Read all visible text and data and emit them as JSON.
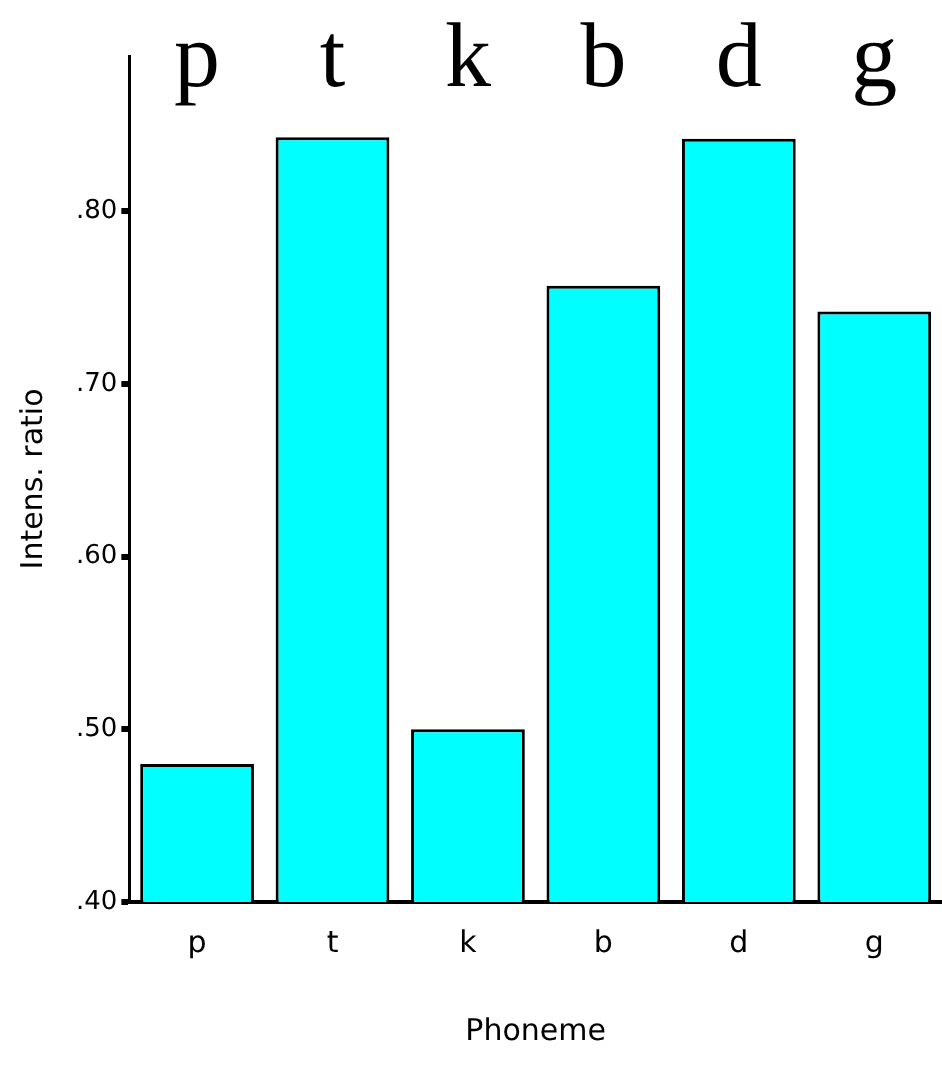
{
  "chart_data": {
    "type": "bar",
    "xlabel": "Phoneme",
    "ylabel": "Intens. ratio",
    "categories": [
      "p",
      "t",
      "k",
      "b",
      "d",
      "g"
    ],
    "values": [
      0.48,
      0.843,
      0.5,
      0.757,
      0.842,
      0.742
    ],
    "color": "#00ffff",
    "ylim": [
      0.4,
      0.89
    ],
    "yticks": [
      {
        "value": 0.4,
        "label": ".40"
      },
      {
        "value": 0.5,
        "label": ".50"
      },
      {
        "value": 0.6,
        "label": ".60"
      },
      {
        "value": 0.7,
        "label": ".70"
      },
      {
        "value": 0.8,
        "label": ".80"
      }
    ],
    "grid": false,
    "legend": false,
    "annotations": [
      "p",
      "t",
      "k",
      "b",
      "d",
      "g"
    ]
  }
}
